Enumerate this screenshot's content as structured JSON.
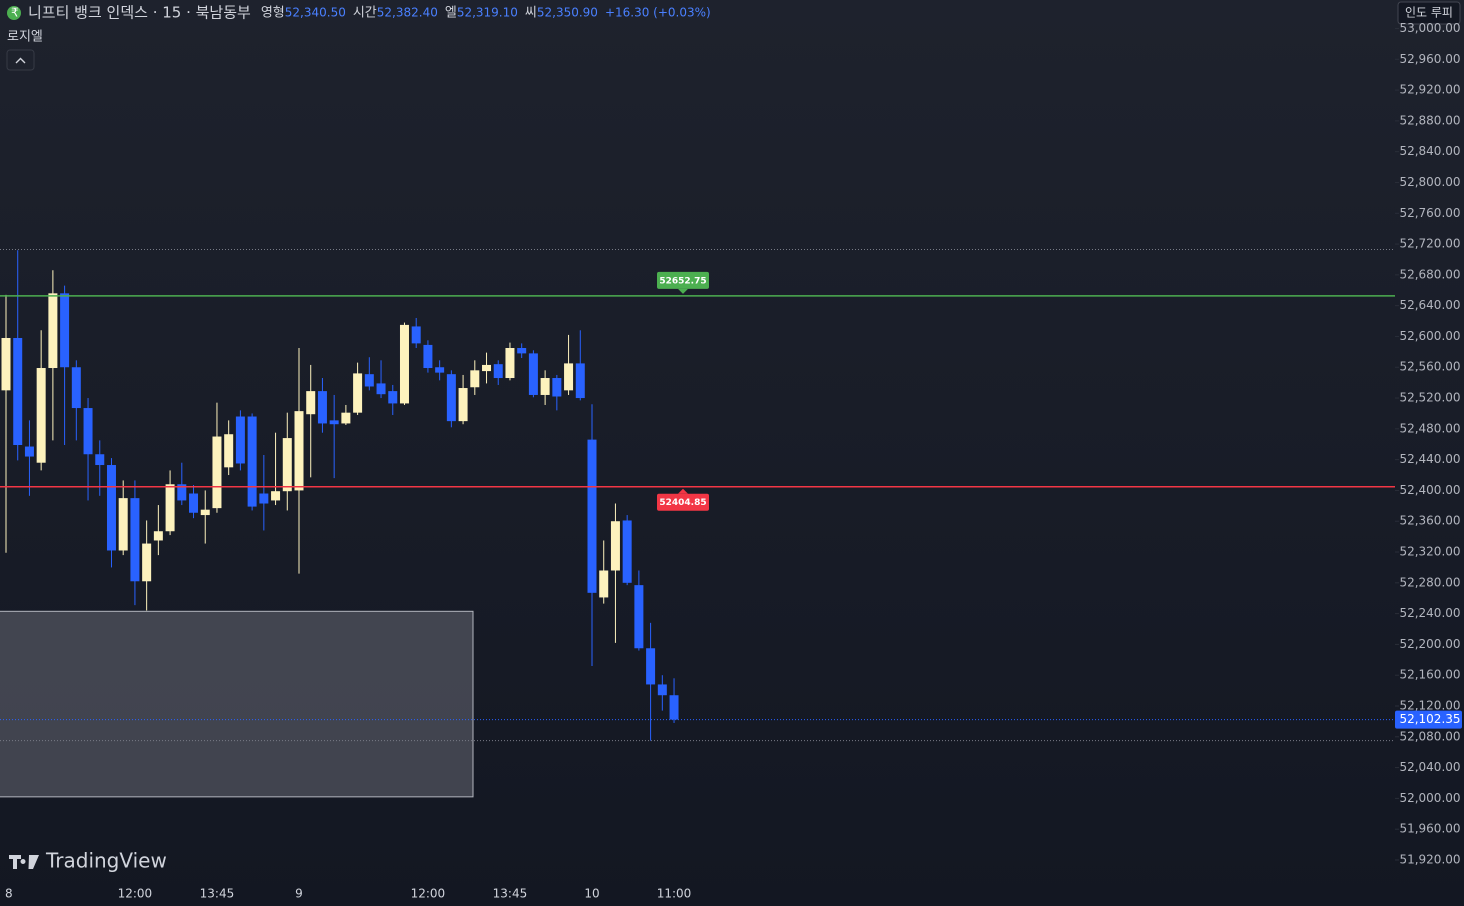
{
  "chart_data": {
    "type": "candlestick",
    "header": {
      "symbol": "니프티 뱅크 인덱스 · 15 · 북남동부",
      "ohlc": [
        {
          "label": "영형",
          "value": "52,340.50"
        },
        {
          "label": "시간",
          "value": "52,382.40"
        },
        {
          "label": "엘",
          "value": "52,319.10"
        },
        {
          "label": "씨",
          "value": "52,350.90"
        }
      ],
      "change": "+16.30 (+0.03%)",
      "indicator": "로지엘"
    },
    "currency": "인도 루피",
    "brand": "TradingView",
    "up_color": "#fdf2bd",
    "down_color": "#2962ff",
    "categories": [
      "8",
      null,
      null,
      null,
      null,
      null,
      null,
      null,
      null,
      null,
      null,
      "12:00",
      null,
      null,
      null,
      null,
      null,
      null,
      "13:45",
      null,
      null,
      null,
      null,
      null,
      null,
      "9",
      null,
      null,
      null,
      null,
      null,
      null,
      null,
      null,
      null,
      null,
      "12:00",
      null,
      null,
      null,
      null,
      null,
      null,
      "13:45",
      null,
      null,
      null,
      null,
      null,
      null,
      "10",
      null,
      null,
      null,
      null,
      null,
      null,
      "11:00"
    ],
    "open": [
      52530,
      52598,
      52457,
      52436,
      52559,
      52656,
      52560,
      52507,
      52447,
      52433,
      52322,
      52390,
      52282,
      52335,
      52347,
      52408,
      52396,
      52368,
      52377,
      52430,
      52496,
      52496,
      52396,
      52387,
      52399,
      52400,
      52499,
      52529,
      52491,
      52487,
      52501,
      52551,
      52539,
      52529,
      52513,
      52613,
      52589,
      52560,
      52551,
      52490,
      52534,
      52555,
      52564,
      52546,
      52585,
      52578,
      52524,
      52546,
      52530,
      52565,
      52466,
      52261,
      52296,
      52361,
      52277,
      52195,
      52148,
      52134
    ],
    "high": [
      52654,
      52712,
      52491,
      52608,
      52686,
      52666,
      52569,
      52520,
      52465,
      52442,
      52413,
      52413,
      52361,
      52381,
      52426,
      52436,
      52407,
      52400,
      52514,
      52491,
      52504,
      52500,
      52446,
      52475,
      52501,
      52585,
      52563,
      52546,
      52524,
      52511,
      52566,
      52573,
      52569,
      52537,
      52618,
      52624,
      52595,
      52569,
      52556,
      52550,
      52569,
      52579,
      52569,
      52592,
      52591,
      52582,
      52556,
      52550,
      52602,
      52608,
      52512,
      52335,
      52383,
      52368,
      52296,
      52228,
      52160,
      52156
    ],
    "low": [
      52319,
      52439,
      52393,
      52426,
      52465,
      52459,
      52465,
      52387,
      52393,
      52300,
      52316,
      52251,
      52244,
      52316,
      52342,
      52381,
      52364,
      52331,
      52371,
      52420,
      52426,
      52374,
      52348,
      52381,
      52374,
      52292,
      52417,
      52475,
      52416,
      52485,
      52498,
      52530,
      52520,
      52498,
      52511,
      52585,
      52553,
      52543,
      52482,
      52486,
      52524,
      52539,
      52537,
      52543,
      52572,
      52521,
      52511,
      52504,
      52524,
      52517,
      52172,
      52253,
      52202,
      52277,
      52192,
      52075,
      52114,
      52098
    ],
    "close": [
      52598,
      52459,
      52444,
      52559,
      52656,
      52560,
      52507,
      52447,
      52433,
      52322,
      52390,
      52282,
      52331,
      52347,
      52408,
      52387,
      52371,
      52375,
      52470,
      52473,
      52435,
      52379,
      52383,
      52399,
      52468,
      52503,
      52529,
      52487,
      52486,
      52501,
      52552,
      52535,
      52525,
      52513,
      52615,
      52591,
      52559,
      52553,
      52490,
      52533,
      52556,
      52563,
      52546,
      52585,
      52578,
      52524,
      52546,
      52522,
      52565,
      52520,
      52267,
      52296,
      52360,
      52280,
      52195,
      52148,
      52134,
      52102.35
    ],
    "last_price_label": "52,102.35",
    "levels": [
      {
        "value": 52652.75,
        "color": "#4caf50"
      },
      {
        "value": 52404.85,
        "color": "#f23645"
      }
    ],
    "dotted_levels": [
      52713,
      52075
    ],
    "zone": {
      "top": 52243,
      "bottom": 52002
    },
    "ylim": [
      51894,
      53037
    ],
    "yticks": [
      {
        "value": 53000,
        "label": "53,000.00"
      },
      {
        "value": 52960,
        "label": "52,960.00"
      },
      {
        "value": 52920,
        "label": "52,920.00"
      },
      {
        "value": 52880,
        "label": "52,880.00"
      },
      {
        "value": 52840,
        "label": "52,840.00"
      },
      {
        "value": 52800,
        "label": "52,800.00"
      },
      {
        "value": 52760,
        "label": "52,760.00"
      },
      {
        "value": 52720,
        "label": "52,720.00"
      },
      {
        "value": 52680,
        "label": "52,680.00"
      },
      {
        "value": 52640,
        "label": "52,640.00"
      },
      {
        "value": 52600,
        "label": "52,600.00"
      },
      {
        "value": 52560,
        "label": "52,560.00"
      },
      {
        "value": 52520,
        "label": "52,520.00"
      },
      {
        "value": 52480,
        "label": "52,480.00"
      },
      {
        "value": 52440,
        "label": "52,440.00"
      },
      {
        "value": 52400,
        "label": "52,400.00"
      },
      {
        "value": 52360,
        "label": "52,360.00"
      },
      {
        "value": 52320,
        "label": "52,320.00"
      },
      {
        "value": 52280,
        "label": "52,280.00"
      },
      {
        "value": 52240,
        "label": "52,240.00"
      },
      {
        "value": 52200,
        "label": "52,200.00"
      },
      {
        "value": 52160,
        "label": "52,160.00"
      },
      {
        "value": 52120,
        "label": "52,120.00"
      },
      {
        "value": 52080,
        "label": "52,080.00"
      },
      {
        "value": 52040,
        "label": "52,040.00"
      },
      {
        "value": 52000,
        "label": "52,000.00"
      },
      {
        "value": 51960,
        "label": "51,960.00"
      },
      {
        "value": 51920,
        "label": "51,920.00"
      }
    ]
  }
}
